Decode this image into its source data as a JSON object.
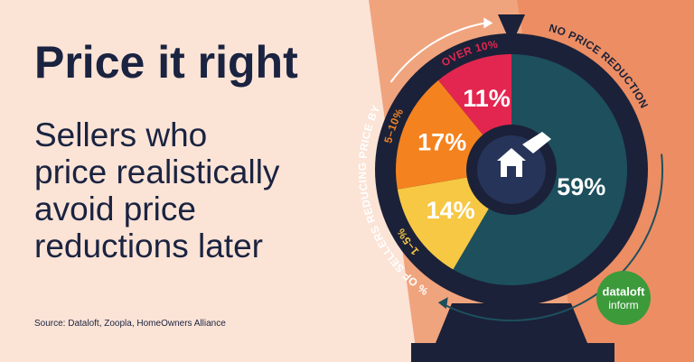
{
  "title": "Price it right",
  "subtitle_lines": [
    "Sellers who",
    "price realistically",
    "avoid price",
    "reductions later"
  ],
  "source": "Source: Dataloft, Zoopla, HomeOwners Alliance",
  "logo": {
    "line1": "dataloft",
    "line2": "inform"
  },
  "chart_data": {
    "type": "pie",
    "annotation": "% OF SELLERS REDUCING PRICE BY",
    "categories": [
      "NO PRICE REDUCTION",
      "1–5%",
      "5–10%",
      "OVER 10%"
    ],
    "values": [
      59,
      14,
      17,
      11
    ],
    "value_labels": [
      "59%",
      "14%",
      "17%",
      "11%"
    ],
    "colors": [
      "#1d4f5d",
      "#f7c844",
      "#f4821f",
      "#e3264f"
    ]
  }
}
